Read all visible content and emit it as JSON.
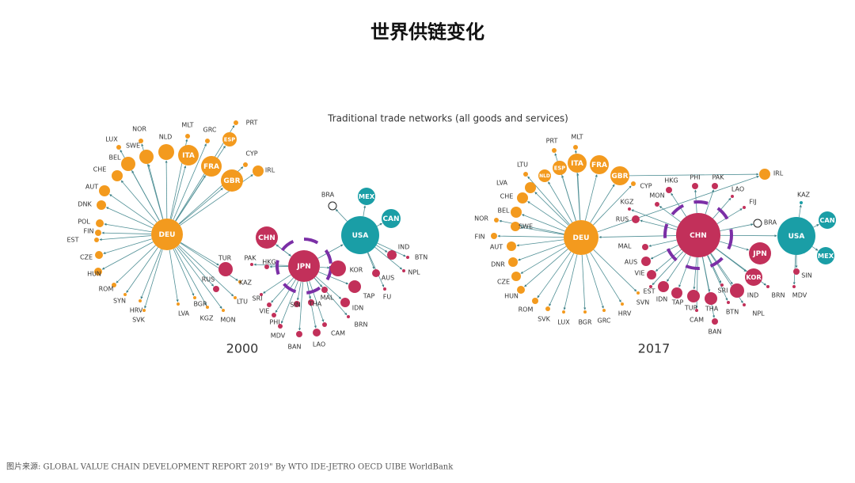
{
  "header": {
    "title": "世界供链变化",
    "subtitle": "Traditional trade networks (all goods and services)"
  },
  "networks": [
    {
      "year": "2000",
      "nodes": [
        "DEU",
        "JPN",
        "USA",
        "CHN",
        "ITA",
        "FRA",
        "ESP",
        "GBR",
        "PRT",
        "GRC",
        "MLT",
        "CYP",
        "IRL",
        "NLD",
        "SWE",
        "NOR",
        "LUX",
        "BEL",
        "CHE",
        "AUT",
        "DNK",
        "POL",
        "FIN",
        "EST",
        "CZE",
        "HUN",
        "ROM",
        "SYN",
        "HRV",
        "SVK",
        "LVA",
        "BGR",
        "KGZ",
        "MON",
        "LTU",
        "KAZ",
        "RUS",
        "TUR",
        "PAK",
        "HKG",
        "MEX",
        "CAN",
        "BRA",
        "KOR",
        "IND",
        "BTN",
        "NPL",
        "AUS",
        "FU",
        "TAP",
        "IDN",
        "BRN",
        "CAM",
        "LAO",
        "BAN",
        "MDV",
        "PHI",
        "VIE",
        "SRI",
        "MAL",
        "SIN",
        "THA"
      ]
    },
    {
      "year": "2017",
      "nodes": [
        "DEU",
        "CHN",
        "USA",
        "CAN",
        "MEX",
        "JPN",
        "KOR",
        "IRL",
        "GBR",
        "FRA",
        "ITA",
        "ESP",
        "NLD",
        "PRT",
        "MLT",
        "LTU",
        "CYP",
        "LVA",
        "CHE",
        "BEL",
        "NOR",
        "SWE",
        "FIN",
        "AUT",
        "DNR",
        "CZE",
        "HUN",
        "ROM",
        "SVK",
        "LUX",
        "BGR",
        "GRC",
        "HRV",
        "SVN",
        "RUS",
        "KGZ",
        "MON",
        "HKG",
        "PHI",
        "PAK",
        "LAO",
        "FIJ",
        "BRA",
        "KAZ",
        "SIN",
        "MDV",
        "BRN",
        "IND",
        "NPL",
        "BTN",
        "SRI",
        "THA",
        "BAN",
        "TUR",
        "CAM",
        "TAP",
        "IDN",
        "EST",
        "VIE",
        "AUS",
        "MAL"
      ]
    }
  ],
  "footer": {
    "source": "图片来源: GLOBAL VALUE CHAIN DEVELOPMENT REPORT 2019\" By WTO IDE-JETRO OECD UIBE WorldBank"
  }
}
